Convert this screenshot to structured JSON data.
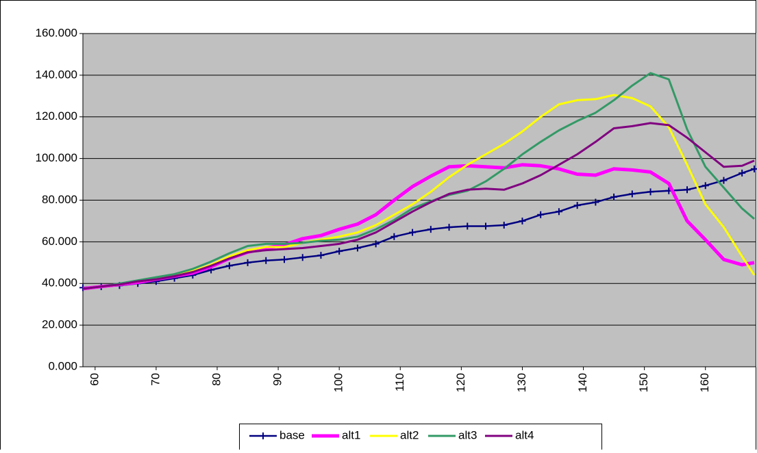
{
  "chart_data": {
    "type": "line",
    "x": [
      58,
      61,
      64,
      67,
      70,
      73,
      76,
      79,
      82,
      85,
      88,
      91,
      94,
      97,
      100,
      103,
      106,
      109,
      112,
      115,
      118,
      121,
      124,
      127,
      130,
      133,
      136,
      139,
      142,
      145,
      148,
      151,
      154,
      157,
      160,
      163,
      166,
      168
    ],
    "xlim": [
      58,
      168
    ],
    "xticks": [
      60,
      70,
      80,
      90,
      100,
      110,
      120,
      130,
      140,
      150,
      160
    ],
    "ylim": [
      0,
      160
    ],
    "yticks": [
      {
        "value": 0,
        "label": "0.000"
      },
      {
        "value": 20,
        "label": "20.000"
      },
      {
        "value": 40,
        "label": "40.000"
      },
      {
        "value": 60,
        "label": "60.000"
      },
      {
        "value": 80,
        "label": "80.000"
      },
      {
        "value": 100,
        "label": "100.000"
      },
      {
        "value": 120,
        "label": "120.000"
      },
      {
        "value": 140,
        "label": "140.000"
      },
      {
        "value": 160,
        "label": "160.000"
      }
    ],
    "grid": true,
    "legend": "bottom",
    "series": [
      {
        "name": "base",
        "color": "#000080",
        "marker": "plus",
        "values": [
          38,
          38.5,
          39,
          40,
          41,
          42.5,
          44,
          46.5,
          48.5,
          50,
          51,
          51.5,
          52.5,
          53.5,
          55.5,
          57,
          59,
          62.5,
          64.5,
          66,
          67,
          67.5,
          67.5,
          68,
          70,
          73,
          74.5,
          77.5,
          79,
          81.5,
          83,
          84,
          84.5,
          85,
          87,
          89.5,
          93,
          95
        ]
      },
      {
        "name": "alt1",
        "color": "#ff00ff",
        "values": [
          37.5,
          38.5,
          39.5,
          40.5,
          42,
          43.5,
          45,
          48,
          52,
          55,
          57,
          58.5,
          61.5,
          63,
          66,
          68.5,
          73,
          80,
          86.5,
          91.5,
          96,
          96.5,
          96,
          95.5,
          97,
          96.5,
          95,
          92.5,
          92,
          95,
          94.5,
          93.5,
          88,
          70,
          61,
          51.5,
          49,
          50
        ]
      },
      {
        "name": "alt2",
        "color": "#ffff00",
        "values": [
          37.5,
          38.5,
          39.5,
          41,
          42,
          44,
          46,
          49,
          53,
          56,
          57.5,
          57.5,
          59.5,
          61,
          62.5,
          64.5,
          68,
          73,
          78,
          84,
          91,
          97,
          102,
          107,
          113,
          120,
          126,
          128,
          128.5,
          130.5,
          129,
          125,
          115,
          97,
          78,
          67,
          53,
          44
        ]
      },
      {
        "name": "alt3",
        "color": "#339966",
        "values": [
          37.5,
          38.5,
          40,
          41.5,
          43,
          44.5,
          47,
          50.5,
          54.5,
          58,
          59,
          59,
          59.5,
          60.5,
          61,
          62.5,
          66,
          70.5,
          76,
          79.5,
          82.5,
          84.5,
          89,
          95,
          102,
          108,
          113.5,
          118,
          122,
          128,
          135,
          141,
          138,
          114,
          96,
          86,
          76,
          71
        ]
      },
      {
        "name": "alt4",
        "color": "#800080",
        "values": [
          37.5,
          38.5,
          39.5,
          41,
          42,
          43.5,
          45.5,
          48.5,
          52,
          55,
          56,
          56.5,
          57,
          58,
          59,
          61,
          64.5,
          69.5,
          74.5,
          79,
          83,
          85,
          85.5,
          85,
          88,
          92,
          97,
          102,
          108,
          114.5,
          115.5,
          117,
          116,
          110,
          103,
          96,
          96.5,
          99
        ]
      }
    ]
  }
}
